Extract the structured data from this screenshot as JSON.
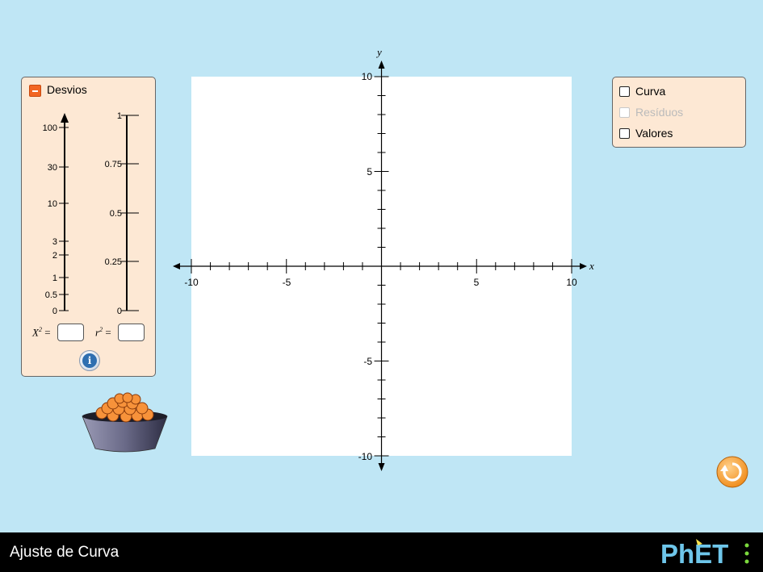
{
  "app": {
    "title": "Ajuste de Curva",
    "brand": "PhET"
  },
  "deviations": {
    "title": "Desvios",
    "chi_ticks": [
      "100",
      "30",
      "10",
      "3",
      "2",
      "1",
      "0.5",
      "0"
    ],
    "r_ticks": [
      "1",
      "0.75",
      "0.5",
      "0.25",
      "0"
    ],
    "chi_label": "X",
    "chi_sup": "2",
    "r_label": "r",
    "r_sup": "2",
    "eq": "=",
    "chi_value": "",
    "r_value": ""
  },
  "graph": {
    "x_label": "x",
    "y_label": "y",
    "x_ticks": [
      "-10",
      "-5",
      "5",
      "10"
    ],
    "y_ticks": [
      "10",
      "5",
      "-5",
      "-10"
    ],
    "x_range": [
      -10,
      10
    ],
    "y_range": [
      -10,
      10
    ]
  },
  "options": {
    "items": [
      {
        "label": "Curva",
        "checked": false,
        "enabled": true
      },
      {
        "label": "Resíduos",
        "checked": false,
        "enabled": false
      },
      {
        "label": "Valores",
        "checked": false,
        "enabled": true
      }
    ]
  },
  "colors": {
    "background": "#bfe6f5",
    "panel": "#fde8d4",
    "accent": "#f26522",
    "points": "#f7923a",
    "reset": "#f7a23a"
  },
  "icons": [
    "collapse-icon",
    "info-icon",
    "reset-icon",
    "bucket-icon"
  ]
}
